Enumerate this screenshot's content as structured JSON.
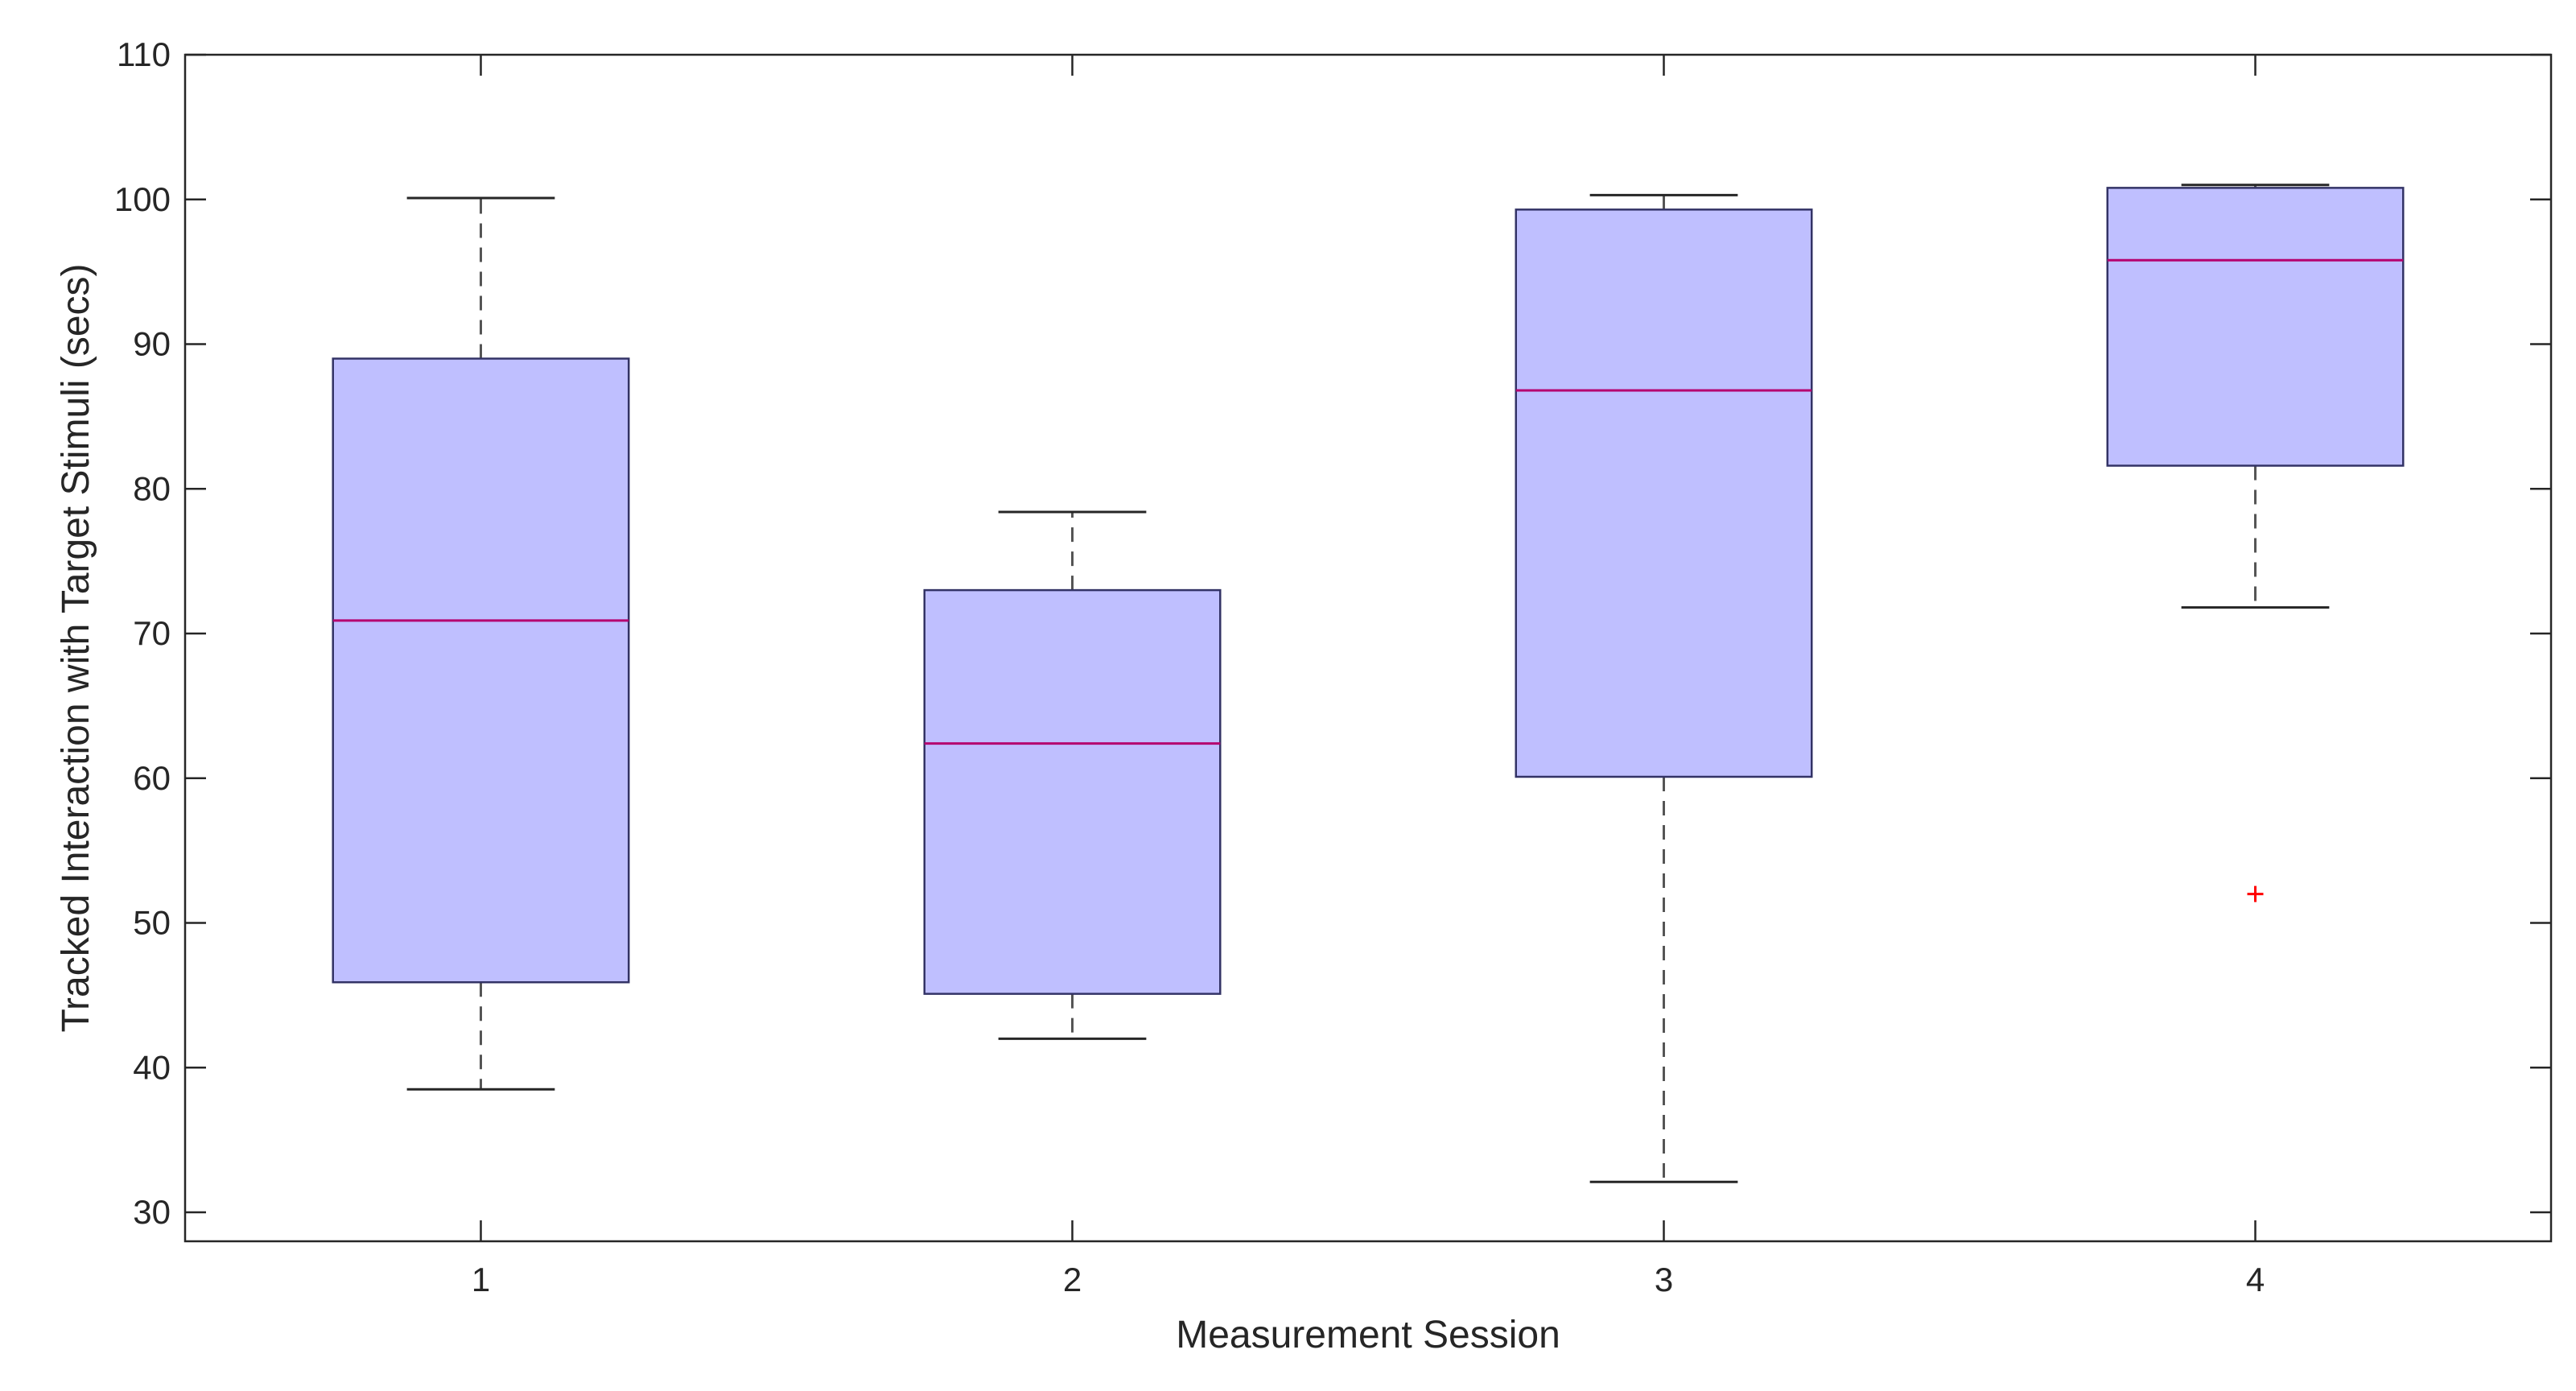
{
  "chart_data": {
    "type": "box",
    "title": "",
    "xlabel": "Measurement Session",
    "ylabel": "Tracked Interaction with Target Stimuli (secs)",
    "ylim": [
      28,
      110
    ],
    "yticks": [
      30,
      40,
      50,
      60,
      70,
      80,
      90,
      100,
      110
    ],
    "categories": [
      "1",
      "2",
      "3",
      "4"
    ],
    "boxes": [
      {
        "category": "1",
        "min": 38.5,
        "q1": 45.9,
        "median": 70.9,
        "q3": 89.0,
        "max": 100.1,
        "outliers": []
      },
      {
        "category": "2",
        "min": 42.0,
        "q1": 45.1,
        "median": 62.4,
        "q3": 73.0,
        "max": 78.4,
        "outliers": []
      },
      {
        "category": "3",
        "min": 32.1,
        "q1": 60.1,
        "median": 86.8,
        "q3": 99.3,
        "max": 100.3,
        "outliers": []
      },
      {
        "category": "4",
        "min": 71.8,
        "q1": 81.6,
        "median": 95.8,
        "q3": 100.8,
        "max": 101.0,
        "outliers": [
          52.0
        ]
      }
    ],
    "grid": false,
    "colors": {
      "box_fill": "#bfbfff",
      "box_edge": "#333366",
      "median": "#b5006f",
      "whisker": "#555555",
      "outlier": "#ff0000",
      "axes": "#262626"
    }
  }
}
